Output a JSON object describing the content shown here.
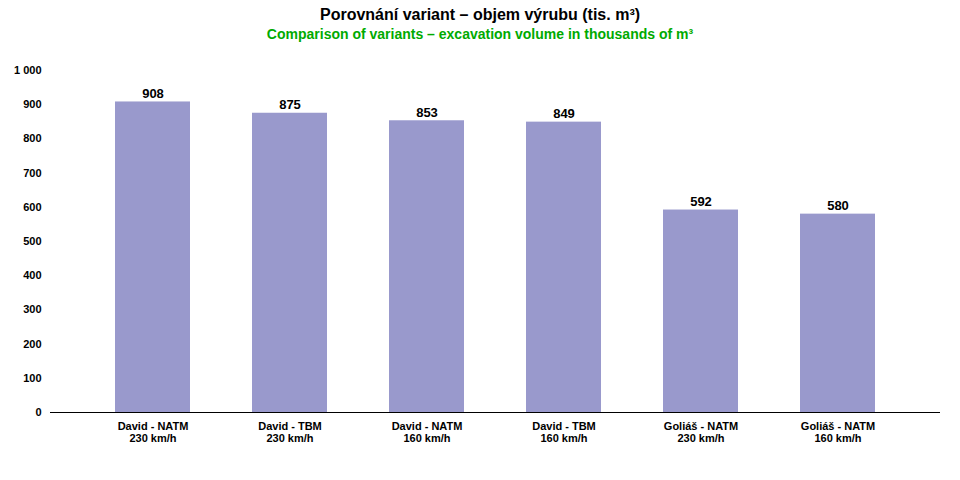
{
  "chart_data": {
    "type": "bar",
    "title": "Porovnání variant – objem výrubu (tis. m³)",
    "subtitle": "Comparison of variants – excavation volume in thousands of m³",
    "categories": [
      "David - NATM\n230 km/h",
      "David - TBM\n230 km/h",
      "David - NATM\n160 km/h",
      "David - TBM\n160 km/h",
      "Goliáš - NATM\n230 km/h",
      "Goliáš - NATM\n160 km/h"
    ],
    "values": [
      908,
      875,
      853,
      849,
      592,
      580
    ],
    "color": "#9999CC",
    "ylim": [
      0,
      1000
    ],
    "yticks": [
      0,
      100,
      200,
      300,
      400,
      500,
      600,
      700,
      800,
      900,
      {
        "value": 1000,
        "label": "1 000"
      }
    ],
    "grid": false,
    "data_labels": true
  }
}
